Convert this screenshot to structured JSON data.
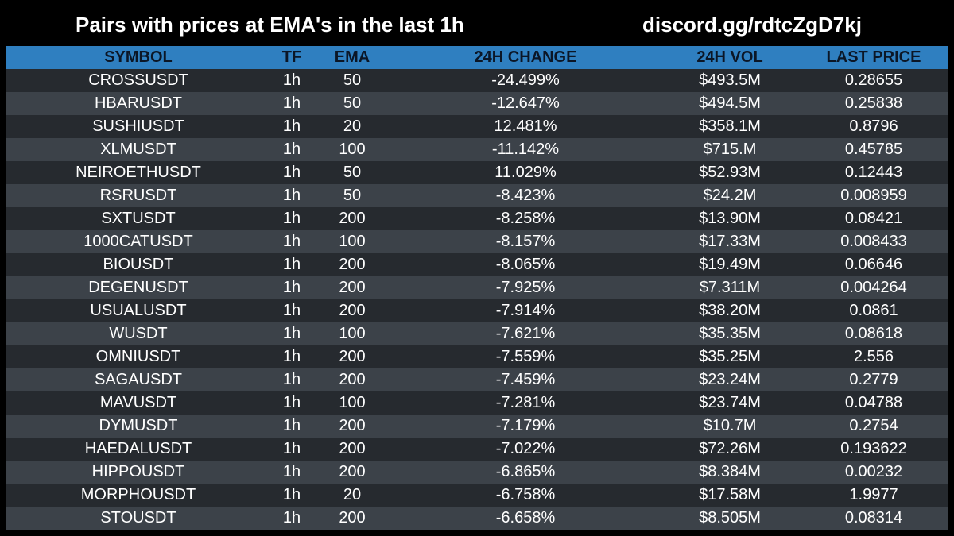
{
  "header": {
    "title": "Pairs with prices at EMA's in the last 1h",
    "discord": "discord.gg/rdtcZgD7kj"
  },
  "table": {
    "columns": [
      "SYMBOL",
      "TF",
      "EMA",
      "24H CHANGE",
      "24H VOL",
      "LAST PRICE"
    ],
    "rows": [
      [
        "CROSSUSDT",
        "1h",
        "50",
        "-24.499%",
        "$493.5M",
        "0.28655"
      ],
      [
        "HBARUSDT",
        "1h",
        "50",
        "-12.647%",
        "$494.5M",
        "0.25838"
      ],
      [
        "SUSHIUSDT",
        "1h",
        "20",
        "12.481%",
        "$358.1M",
        "0.8796"
      ],
      [
        "XLMUSDT",
        "1h",
        "100",
        "-11.142%",
        "$715.M",
        "0.45785"
      ],
      [
        "NEIROETHUSDT",
        "1h",
        "50",
        "11.029%",
        "$52.93M",
        "0.12443"
      ],
      [
        "RSRUSDT",
        "1h",
        "50",
        "-8.423%",
        "$24.2M",
        "0.008959"
      ],
      [
        "SXTUSDT",
        "1h",
        "200",
        "-8.258%",
        "$13.90M",
        "0.08421"
      ],
      [
        "1000CATUSDT",
        "1h",
        "100",
        "-8.157%",
        "$17.33M",
        "0.008433"
      ],
      [
        "BIOUSDT",
        "1h",
        "200",
        "-8.065%",
        "$19.49M",
        "0.06646"
      ],
      [
        "DEGENUSDT",
        "1h",
        "200",
        "-7.925%",
        "$7.311M",
        "0.004264"
      ],
      [
        "USUALUSDT",
        "1h",
        "200",
        "-7.914%",
        "$38.20M",
        "0.0861"
      ],
      [
        "WUSDT",
        "1h",
        "100",
        "-7.621%",
        "$35.35M",
        "0.08618"
      ],
      [
        "OMNIUSDT",
        "1h",
        "200",
        "-7.559%",
        "$35.25M",
        "2.556"
      ],
      [
        "SAGAUSDT",
        "1h",
        "200",
        "-7.459%",
        "$23.24M",
        "0.2779"
      ],
      [
        "MAVUSDT",
        "1h",
        "100",
        "-7.281%",
        "$23.74M",
        "0.04788"
      ],
      [
        "DYMUSDT",
        "1h",
        "200",
        "-7.179%",
        "$10.7M",
        "0.2754"
      ],
      [
        "HAEDALUSDT",
        "1h",
        "200",
        "-7.022%",
        "$72.26M",
        "0.193622"
      ],
      [
        "HIPPOUSDT",
        "1h",
        "200",
        "-6.865%",
        "$8.384M",
        "0.00232"
      ],
      [
        "MORPHOUSDT",
        "1h",
        "20",
        "-6.758%",
        "$17.58M",
        "1.9977"
      ],
      [
        "STOUSDT",
        "1h",
        "200",
        "-6.658%",
        "$8.505M",
        "0.08314"
      ]
    ]
  }
}
